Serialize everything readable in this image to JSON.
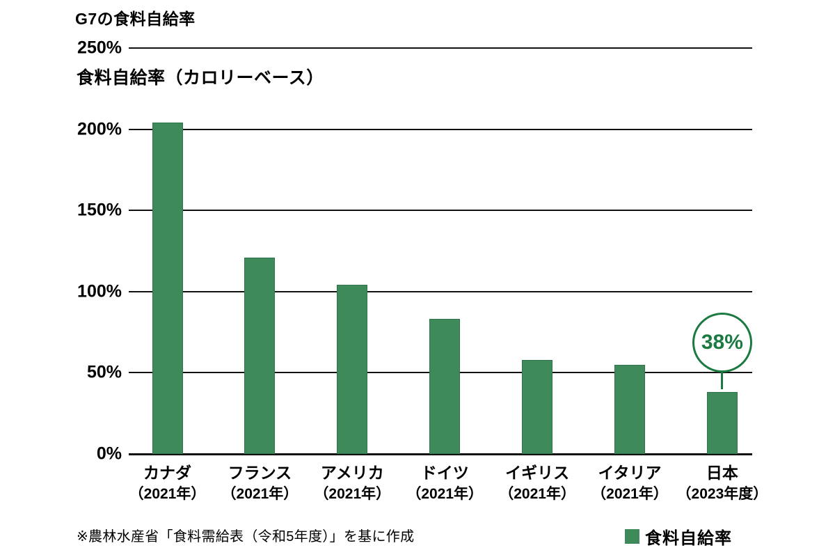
{
  "header": {
    "title": "G7の食料自給率",
    "subtitle": "食料自給率（カロリーベース）"
  },
  "chart_data": {
    "type": "bar",
    "title": "G7の食料自給率",
    "subtitle": "食料自給率（カロリーベース）",
    "categories": [
      "カナダ",
      "フランス",
      "アメリカ",
      "ドイツ",
      "イギリス",
      "イタリア",
      "日本"
    ],
    "category_sublabels": [
      "（2021年）",
      "（2021年）",
      "（2021年）",
      "（2021年）",
      "（2021年）",
      "（2021年）",
      "（2023年度）"
    ],
    "series": [
      {
        "name": "食料自給率",
        "values": [
          204,
          121,
          104,
          83,
          58,
          55,
          38
        ]
      }
    ],
    "ylim": [
      0,
      250
    ],
    "yticks": [
      {
        "value": 250,
        "label": "250%"
      },
      {
        "value": 200,
        "label": "200%"
      },
      {
        "value": 150,
        "label": "150%"
      },
      {
        "value": 100,
        "label": "100%"
      },
      {
        "value": 50,
        "label": "50%"
      },
      {
        "value": 0,
        "label": "0%"
      }
    ],
    "grid": "horizontal-black-lines",
    "legend_position": "bottom-right",
    "annotation": {
      "category_index": 6,
      "label": "38%"
    }
  },
  "legend": {
    "label": "食料自給率"
  },
  "footer": {
    "source_note": "※農林水産省「食料需給表（令和5年度）」を基に作成"
  },
  "colors": {
    "bar": "#3e8a5b",
    "bar_border": "#2f7549",
    "annotation_green": "#1b7a41",
    "grid": "#111111",
    "text": "#000000",
    "background": "#ffffff"
  }
}
